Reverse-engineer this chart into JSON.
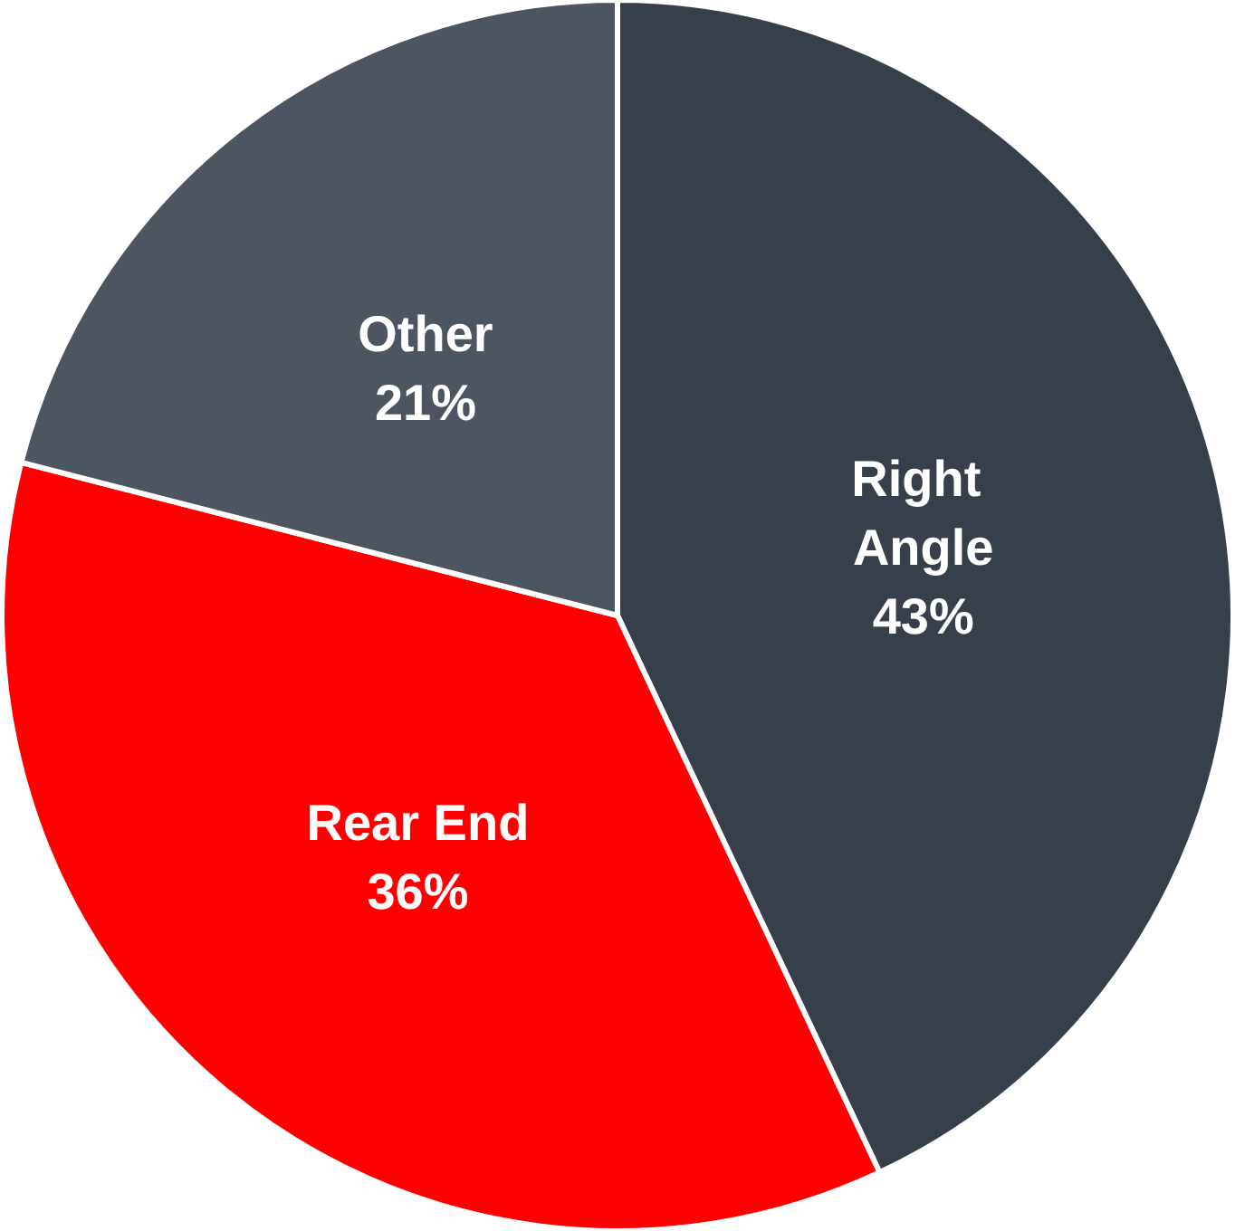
{
  "chart_data": {
    "type": "pie",
    "categories": [
      "Right Angle",
      "Rear End",
      "Other"
    ],
    "values": [
      43,
      36,
      21
    ],
    "colors": [
      "#363f4a",
      "#ff0000",
      "#4d5561"
    ],
    "value_labels": [
      "43%",
      "36%",
      "21%"
    ],
    "legend": false
  }
}
